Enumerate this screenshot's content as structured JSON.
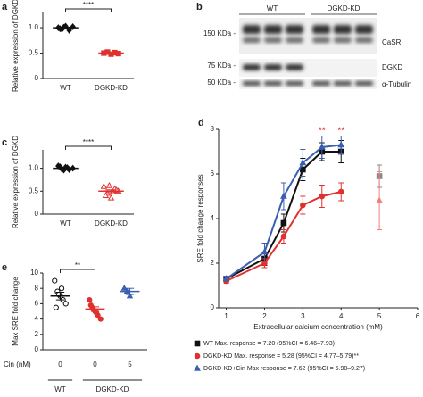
{
  "blot": {
    "panel": "b",
    "lanes": [
      "WT",
      "DGKD-KD"
    ],
    "markers": [
      "150 KDa -",
      "75 KDa -",
      "50 KDa -"
    ],
    "bands": [
      "CaSR",
      "DGKD",
      "α-Tubulin"
    ]
  },
  "chart_data": [
    {
      "type": "strip",
      "panel": "a",
      "ylabel": "Relative expression of DGKD",
      "categories": [
        "WT",
        "DGKD-KD"
      ],
      "points": [
        [
          1.0,
          0.97,
          1.03,
          0.95,
          1.02,
          0.98,
          1.01
        ],
        [
          0.5,
          0.52,
          0.48,
          0.51,
          0.49
        ]
      ],
      "means": [
        1.0,
        0.5
      ],
      "sem": [
        0.01,
        0.01
      ],
      "colors": [
        "#111111",
        "#e0312f"
      ],
      "markers": [
        "diamond",
        "square"
      ],
      "filled": [
        true,
        true
      ],
      "ylim": [
        0,
        1.3
      ],
      "yticks": [
        0,
        0.5,
        {
          "value": 1,
          "label": "1.0"
        }
      ],
      "significance": "****"
    },
    {
      "type": "strip",
      "panel": "c",
      "ylabel": "Relative expression of DGKD",
      "categories": [
        "WT",
        "DGKD-KD"
      ],
      "points": [
        [
          1.05,
          0.98,
          1.02,
          0.97,
          1.0,
          1.03,
          0.96,
          1.01
        ],
        [
          0.6,
          0.45,
          0.35,
          0.55,
          0.5,
          0.4,
          0.62,
          0.48,
          0.52
        ]
      ],
      "means": [
        1.0,
        0.5
      ],
      "sem": [
        0.01,
        0.03
      ],
      "colors": [
        "#111111",
        "#e0312f"
      ],
      "markers": [
        "diamond",
        "triangle"
      ],
      "filled": [
        true,
        false
      ],
      "ylim": [
        0,
        1.4
      ],
      "yticks": [
        0,
        0.5,
        {
          "value": 1,
          "label": "1.0"
        }
      ],
      "significance": "****"
    },
    {
      "type": "strip",
      "panel": "e",
      "ylabel": "Max SRE fold change",
      "xlabel": "Cin (nM)",
      "categories": [
        "0",
        "0",
        "5"
      ],
      "group_labels": [
        "WT",
        "DGKD-KD"
      ],
      "points": [
        [
          9.0,
          7.6,
          7.0,
          6.5,
          6.0,
          5.5,
          7.2,
          8.0
        ],
        [
          6.5,
          5.5,
          5.0,
          4.5,
          4.0,
          5.8,
          5.2,
          4.8
        ],
        [
          8.0,
          7.6,
          7.0
        ]
      ],
      "means": [
        7.0,
        5.3,
        7.6
      ],
      "sem": [
        0.5,
        0.3,
        0.4
      ],
      "colors": [
        "#111111",
        "#e0312f",
        "#3a5fb0"
      ],
      "markers": [
        "circle",
        "circle",
        "triangle"
      ],
      "filled": [
        false,
        true,
        true
      ],
      "ylim": [
        0,
        10
      ],
      "yticks": [
        0,
        2,
        4,
        6,
        8,
        10
      ],
      "significance": "**"
    },
    {
      "type": "line",
      "panel": "d",
      "xlabel": "Extracellular calcium concentration (mM)",
      "ylabel": "SRE fold change responses",
      "xlim": [
        0.8,
        6
      ],
      "xticks": [
        1,
        2,
        3,
        4,
        5,
        6
      ],
      "ylim": [
        0,
        8
      ],
      "yticks": [
        0,
        2,
        4,
        6,
        8
      ],
      "legend": "below",
      "series": [
        {
          "name": "WT Max. response = 7.20 (95%CI = 6.46–7.93)",
          "color": "#111111",
          "marker": "square",
          "x": [
            1,
            2,
            2.5,
            3,
            3.5,
            4
          ],
          "values": [
            1.3,
            2.2,
            3.8,
            6.2,
            7.0,
            7.0
          ],
          "errors": [
            0.1,
            0.3,
            0.4,
            0.5,
            0.4,
            0.5
          ]
        },
        {
          "name": "DGKD-KD Max. response = 5.28 (95%CI = 4.77–5.79)**",
          "color": "#e0312f",
          "marker": "circle",
          "x": [
            1,
            2,
            2.5,
            3,
            3.5,
            4
          ],
          "values": [
            1.2,
            2.0,
            3.2,
            4.6,
            5.0,
            5.2
          ],
          "errors": [
            0.1,
            0.2,
            0.3,
            0.4,
            0.5,
            0.4
          ]
        },
        {
          "name": "DGKD-KD+Cin Max response = 7.62 (95%CI = 5.98–9.27)",
          "color": "#3a5fb0",
          "marker": "triangle",
          "x": [
            1,
            2,
            2.5,
            3,
            3.5,
            4
          ],
          "values": [
            1.3,
            2.5,
            5.0,
            6.5,
            7.2,
            7.3
          ],
          "errors": [
            0.1,
            0.4,
            0.6,
            0.6,
            0.5,
            0.4
          ]
        },
        {
          "color": "#888888",
          "marker": "square",
          "x": [
            5
          ],
          "values": [
            5.9
          ],
          "errors": [
            0.5
          ]
        },
        {
          "color": "#f08080",
          "marker": "triangle",
          "x": [
            5
          ],
          "values": [
            4.8
          ],
          "errors": [
            1.3
          ]
        }
      ],
      "annotations": [
        {
          "text": "**",
          "x": 3.5,
          "color": "#e0312f"
        },
        {
          "text": "**",
          "x": 4,
          "color": "#e0312f"
        }
      ]
    }
  ]
}
